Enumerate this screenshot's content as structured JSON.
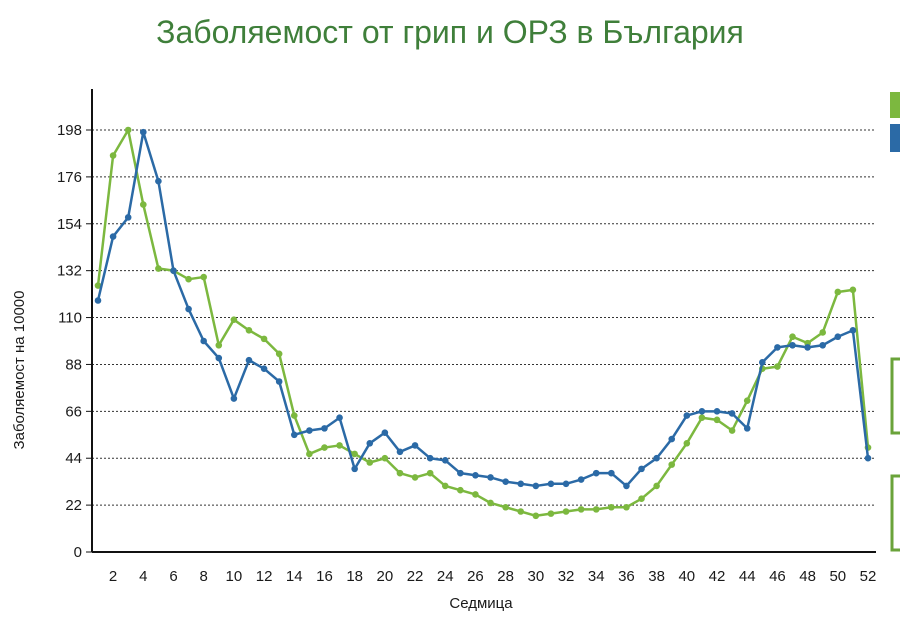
{
  "title": "Заболяемост от грип и ОРЗ в България",
  "colors": {
    "series_green": "#7cb83f",
    "series_blue": "#2b6aa6",
    "title": "#3f7f3a"
  },
  "chart_data": {
    "type": "line",
    "title": "Заболяемост от грип и ОРЗ в България",
    "xlabel": "Седмица",
    "ylabel": "Заболяемост на 10000",
    "xlim": [
      0,
      52
    ],
    "ylim": [
      0,
      198
    ],
    "yticks": [
      0,
      22,
      44,
      66,
      88,
      110,
      132,
      154,
      176,
      198
    ],
    "xticks": [
      2,
      4,
      6,
      8,
      10,
      12,
      14,
      16,
      18,
      20,
      22,
      24,
      26,
      28,
      30,
      32,
      34,
      36,
      38,
      40,
      42,
      44,
      46,
      48,
      50,
      52
    ],
    "grid": true,
    "legend": "top-right",
    "x": [
      1,
      2,
      3,
      4,
      5,
      6,
      7,
      8,
      9,
      10,
      11,
      12,
      13,
      14,
      15,
      16,
      17,
      18,
      19,
      20,
      21,
      22,
      23,
      24,
      25,
      26,
      27,
      28,
      29,
      30,
      31,
      32,
      33,
      34,
      35,
      36,
      37,
      38,
      39,
      40,
      41,
      42,
      43,
      44,
      45,
      46,
      47,
      48,
      49,
      50,
      51,
      52
    ],
    "series": [
      {
        "color": "#7cb83f",
        "values": [
          125,
          186,
          198,
          163,
          133,
          132,
          128,
          129,
          97,
          109,
          104,
          100,
          93,
          64,
          46,
          49,
          50,
          46,
          42,
          44,
          37,
          35,
          37,
          31,
          29,
          27,
          23,
          21,
          19,
          17,
          18,
          19,
          20,
          20,
          21,
          21,
          25,
          31,
          41,
          51,
          63,
          62,
          57,
          71,
          86,
          87,
          101,
          98,
          103,
          122,
          123,
          49
        ]
      },
      {
        "color": "#2b6aa6",
        "values": [
          118,
          148,
          157,
          197,
          174,
          132,
          114,
          99,
          91,
          72,
          90,
          86,
          80,
          55,
          57,
          58,
          63,
          39,
          51,
          56,
          47,
          50,
          44,
          43,
          37,
          36,
          35,
          33,
          32,
          31,
          32,
          32,
          34,
          37,
          37,
          31,
          39,
          44,
          53,
          64,
          66,
          66,
          65,
          58,
          89,
          96,
          97,
          96,
          97,
          101,
          104,
          44
        ]
      }
    ]
  }
}
